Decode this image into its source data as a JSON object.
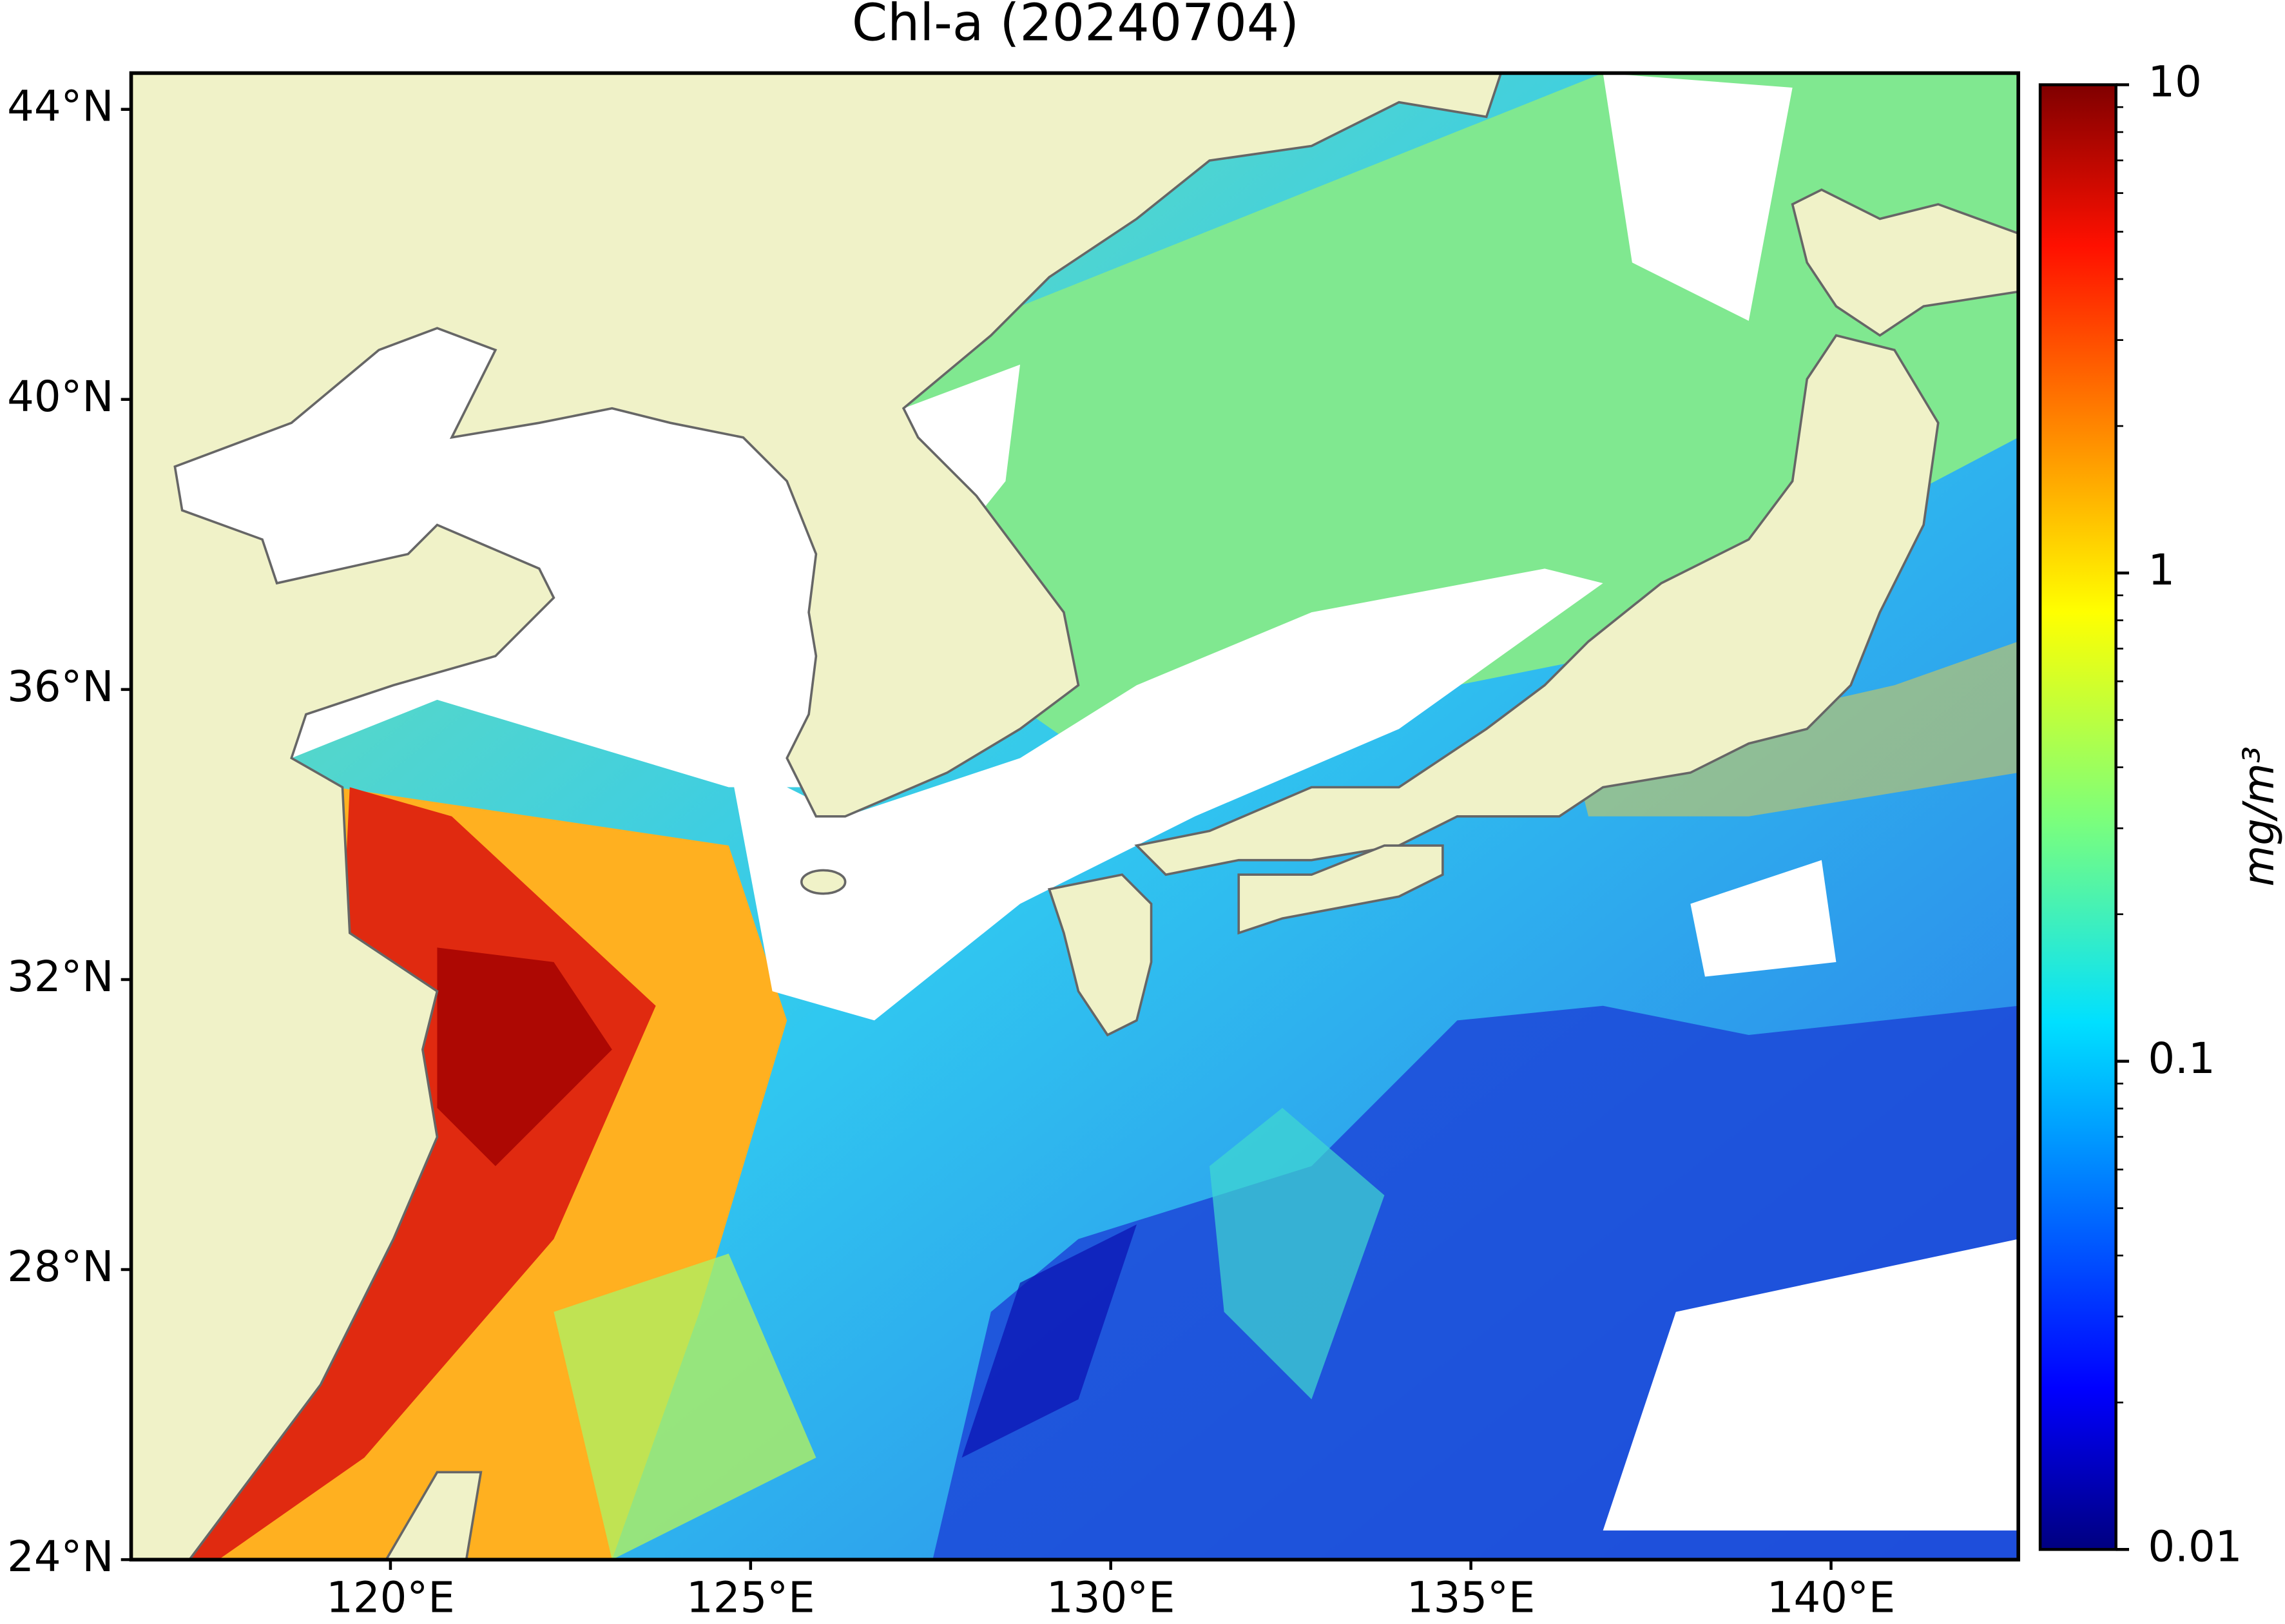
{
  "chart_data": {
    "type": "map",
    "title": "Chl-a (20240704)",
    "xlim": [
      116.4,
      142.6
    ],
    "xticks": [
      {
        "value": 120,
        "label": "120°E"
      },
      {
        "value": 125,
        "label": "125°E"
      },
      {
        "value": 130,
        "label": "130°E"
      },
      {
        "value": 135,
        "label": "135°E"
      },
      {
        "value": 140,
        "label": "140°E"
      }
    ],
    "ylim": [
      24,
      44.5
    ],
    "yticks": [
      {
        "value": 24,
        "label": "24°N"
      },
      {
        "value": 28,
        "label": "28°N"
      },
      {
        "value": 32,
        "label": "32°N"
      },
      {
        "value": 36,
        "label": "36°N"
      },
      {
        "value": 40,
        "label": "40°N"
      },
      {
        "value": 44,
        "label": "44°N"
      }
    ],
    "land_color": "#f0f2c8",
    "colorbar": {
      "label": "mg/m³",
      "scale": "log",
      "colormap": "jet",
      "lim": [
        0.01,
        10
      ],
      "ticks": [
        10,
        1,
        0.1,
        0.01
      ]
    }
  }
}
